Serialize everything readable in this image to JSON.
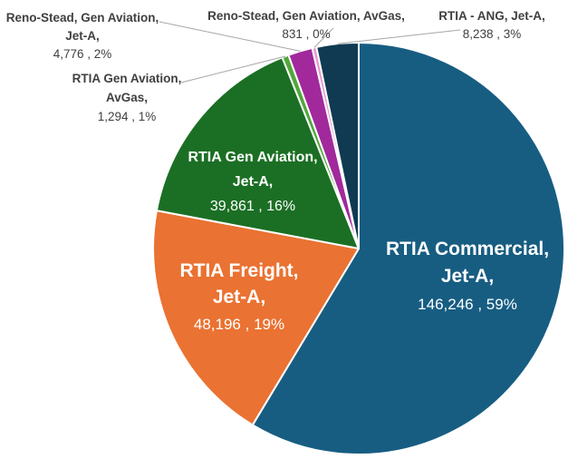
{
  "chart_data": {
    "type": "pie",
    "title": "",
    "slices": [
      {
        "label": "RTIA Commercial, Jet-A",
        "name_lines": [
          "RTIA Commercial,",
          "Jet-A,"
        ],
        "value": 146246,
        "value_text": "146,246",
        "percent_text": "59%",
        "color": "#175d82"
      },
      {
        "label": "RTIA Freight, Jet-A",
        "name_lines": [
          "RTIA Freight,",
          "Jet-A,"
        ],
        "value": 48196,
        "value_text": "48,196",
        "percent_text": "19%",
        "color": "#ea7232"
      },
      {
        "label": "RTIA Gen Aviation, Jet-A",
        "name_lines": [
          "RTIA Gen Aviation,",
          "Jet-A,"
        ],
        "value": 39861,
        "value_text": "39,861",
        "percent_text": "16%",
        "color": "#1b6f24"
      },
      {
        "label": "RTIA Gen Aviation, AvGas",
        "name_lines": [
          "RTIA Gen Aviation,",
          "AvGas,"
        ],
        "value": 1294,
        "value_text": "1,294",
        "percent_text": "1%",
        "color": "#4fa83a"
      },
      {
        "label": "Reno-Stead, Gen Aviation, Jet-A",
        "name_lines": [
          "Reno-Stead, Gen Aviation,",
          "Jet-A,"
        ],
        "value": 4776,
        "value_text": "4,776",
        "percent_text": "2%",
        "color": "#a1299c"
      },
      {
        "label": "Reno-Stead, Gen Aviation, AvGas",
        "name_lines": [
          "Reno-Stead, Gen Aviation, AvGas,"
        ],
        "value": 831,
        "value_text": "831",
        "percent_text": "0%",
        "color": "#e59ad2"
      },
      {
        "label": "RTIA - ANG, Jet-A",
        "name_lines": [
          "RTIA - ANG, Jet-A,"
        ],
        "value": 8238,
        "value_text": "8,238",
        "percent_text": "3%",
        "color": "#0f3a52"
      }
    ]
  }
}
